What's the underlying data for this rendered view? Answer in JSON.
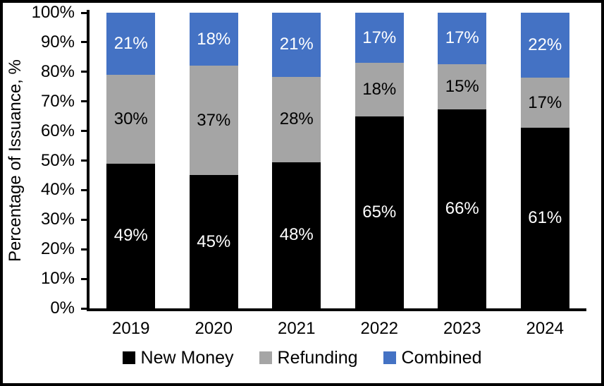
{
  "chart_data": {
    "type": "bar",
    "stacked": true,
    "percent_stack": true,
    "title": "",
    "xlabel": "",
    "ylabel": "Percentage of Issuance, %",
    "ylim": [
      0,
      100
    ],
    "y_tick_labels": [
      "0%",
      "10%",
      "20%",
      "30%",
      "40%",
      "50%",
      "60%",
      "70%",
      "80%",
      "90%",
      "100%"
    ],
    "grid": false,
    "legend_position": "bottom",
    "categories": [
      "2019",
      "2020",
      "2021",
      "2022",
      "2023",
      "2024"
    ],
    "series": [
      {
        "name": "New Money",
        "color": "#000000",
        "label_color": "#FFFFFF",
        "values": [
          49,
          45,
          48,
          65,
          66,
          61
        ]
      },
      {
        "name": "Refunding",
        "color": "#A5A5A5",
        "label_color": "#000000",
        "values": [
          30,
          37,
          28,
          18,
          15,
          17
        ]
      },
      {
        "name": "Combined",
        "color": "#4472C4",
        "label_color": "#FFFFFF",
        "values": [
          21,
          18,
          21,
          17,
          17,
          22
        ]
      }
    ],
    "data_label_suffix": "%"
  },
  "colors": {
    "axis": "#000000",
    "background": "#FFFFFF",
    "border": "#000000"
  }
}
